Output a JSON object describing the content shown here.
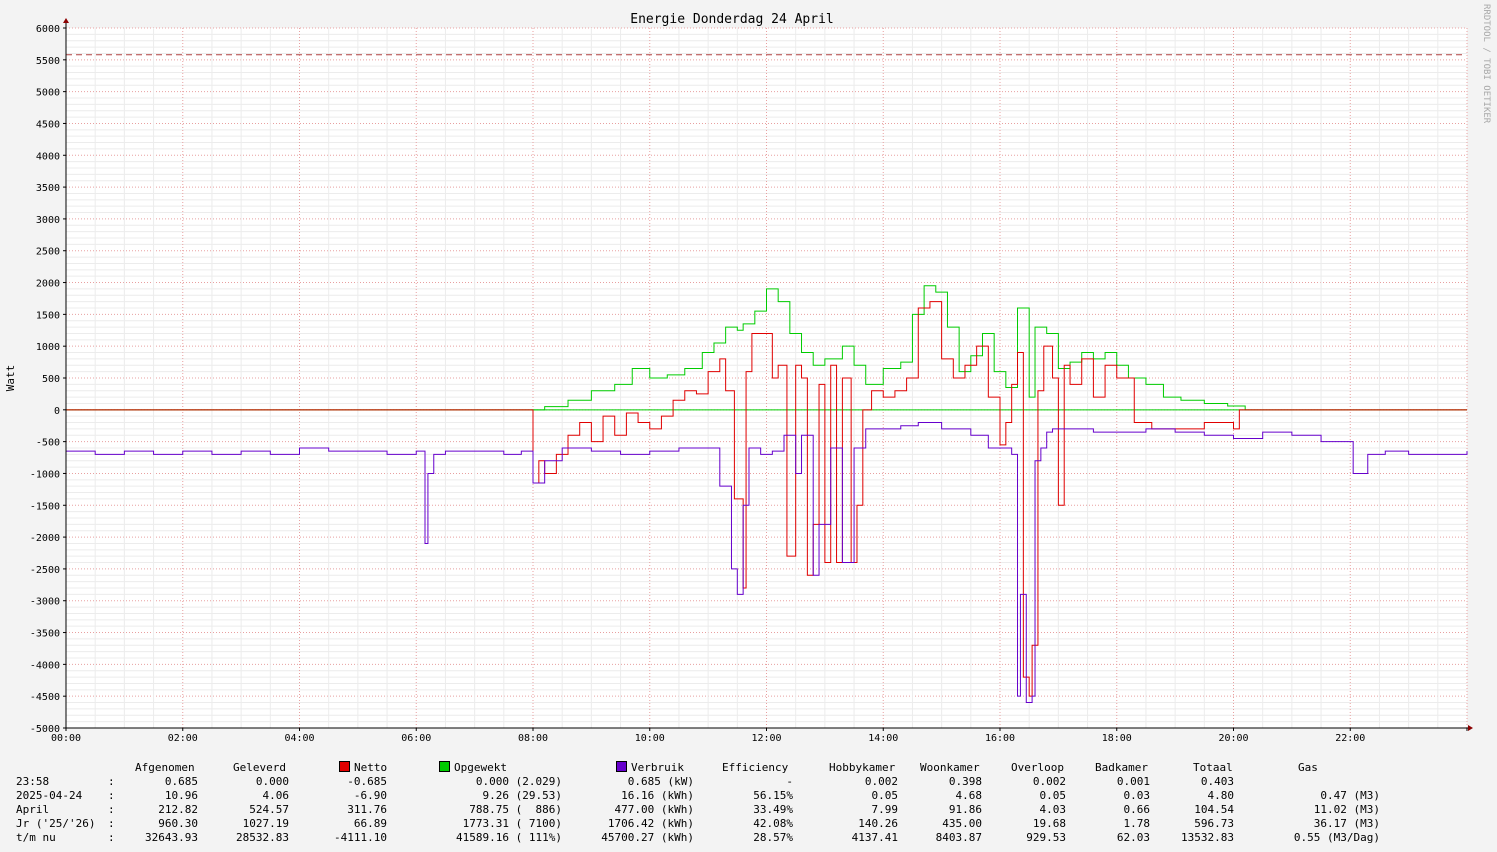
{
  "watermark": "RRDTOOL / TOBI OETIKER",
  "chart_data": {
    "type": "line",
    "title": "Energie Donderdag 24 April",
    "ylabel": "Watt",
    "xlabel": "",
    "ylim": [
      -5000,
      6000
    ],
    "xlim": [
      0,
      24
    ],
    "y_ticks": [
      6000,
      5500,
      5000,
      4500,
      4000,
      3500,
      3000,
      2500,
      2000,
      1500,
      1000,
      500,
      0,
      -500,
      -1000,
      -1500,
      -2000,
      -2500,
      -3000,
      -3500,
      -4000,
      -4500,
      -5000
    ],
    "x_ticks": [
      "00:00",
      "02:00",
      "04:00",
      "06:00",
      "08:00",
      "10:00",
      "12:00",
      "14:00",
      "16:00",
      "18:00",
      "20:00",
      "22:00"
    ],
    "grid": true,
    "reference_line": 5580,
    "series": [
      {
        "name": "Opgewekt",
        "color": "#00cc00",
        "x": [
          0,
          7.7,
          8.2,
          8.6,
          9.0,
          9.4,
          9.7,
          10.0,
          10.3,
          10.6,
          10.9,
          11.1,
          11.3,
          11.5,
          11.6,
          11.8,
          12.0,
          12.2,
          12.4,
          12.6,
          12.8,
          13.0,
          13.3,
          13.5,
          13.7,
          14.0,
          14.3,
          14.5,
          14.7,
          14.9,
          15.1,
          15.3,
          15.5,
          15.7,
          15.9,
          16.1,
          16.3,
          16.5,
          16.6,
          16.8,
          17.0,
          17.2,
          17.4,
          17.6,
          17.8,
          18.0,
          18.2,
          18.5,
          18.8,
          19.1,
          19.5,
          19.9,
          20.2,
          24
        ],
        "y": [
          0,
          0,
          50,
          150,
          300,
          400,
          650,
          500,
          550,
          650,
          900,
          1050,
          1300,
          1250,
          1350,
          1550,
          1900,
          1700,
          1200,
          900,
          700,
          800,
          1000,
          700,
          400,
          650,
          750,
          1500,
          1950,
          1850,
          1300,
          600,
          850,
          1200,
          600,
          350,
          1600,
          200,
          1300,
          1200,
          650,
          750,
          900,
          800,
          900,
          700,
          500,
          400,
          200,
          150,
          100,
          60,
          0,
          0
        ]
      },
      {
        "name": "Netto",
        "color": "#e00000",
        "x": [
          0,
          7.8,
          8.0,
          8.1,
          8.2,
          8.4,
          8.6,
          8.8,
          9.0,
          9.2,
          9.4,
          9.6,
          9.8,
          10.0,
          10.2,
          10.4,
          10.6,
          10.8,
          11.0,
          11.2,
          11.3,
          11.45,
          11.6,
          11.65,
          11.75,
          11.85,
          12.0,
          12.1,
          12.2,
          12.35,
          12.5,
          12.6,
          12.7,
          12.8,
          12.9,
          13.0,
          13.1,
          13.2,
          13.3,
          13.45,
          13.55,
          13.65,
          13.8,
          14.0,
          14.2,
          14.4,
          14.6,
          14.8,
          15.0,
          15.2,
          15.4,
          15.6,
          15.8,
          16.0,
          16.1,
          16.2,
          16.3,
          16.4,
          16.5,
          16.55,
          16.65,
          16.75,
          16.9,
          17.0,
          17.1,
          17.2,
          17.4,
          17.6,
          17.8,
          18.0,
          18.3,
          18.6,
          19.0,
          19.5,
          20.0,
          20.1,
          24
        ],
        "y": [
          0,
          0,
          -1150,
          -800,
          -1000,
          -700,
          -400,
          -200,
          -500,
          -100,
          -400,
          -50,
          -200,
          -300,
          -100,
          150,
          300,
          250,
          600,
          800,
          300,
          -1400,
          -2800,
          600,
          1200,
          1200,
          1200,
          500,
          700,
          -2300,
          700,
          500,
          -2600,
          -1800,
          400,
          -2400,
          700,
          -2400,
          500,
          -2400,
          -1500,
          0,
          300,
          200,
          300,
          500,
          1600,
          1700,
          800,
          500,
          700,
          1000,
          200,
          -550,
          -200,
          400,
          900,
          -4200,
          -4500,
          -3700,
          300,
          1000,
          500,
          -1500,
          700,
          400,
          800,
          200,
          700,
          500,
          -200,
          -300,
          -300,
          -200,
          -300,
          0,
          0
        ]
      },
      {
        "name": "Verbruik",
        "color": "#6600cc",
        "x": [
          0,
          0.5,
          1,
          1.5,
          2,
          2.5,
          3,
          3.5,
          4,
          4.5,
          5,
          5.5,
          6,
          6.15,
          6.2,
          6.3,
          6.5,
          7,
          7.5,
          7.8,
          8.0,
          8.2,
          8.5,
          9,
          9.5,
          10,
          10.5,
          11,
          11.2,
          11.4,
          11.5,
          11.6,
          11.7,
          11.9,
          12.1,
          12.3,
          12.5,
          12.6,
          12.8,
          12.9,
          13.1,
          13.3,
          13.5,
          13.7,
          14.0,
          14.3,
          14.6,
          15.0,
          15.5,
          15.8,
          16.2,
          16.3,
          16.35,
          16.45,
          16.55,
          16.6,
          16.7,
          16.8,
          16.9,
          17.0,
          17.3,
          17.6,
          18.0,
          18.5,
          19.0,
          19.5,
          20.0,
          20.5,
          21.0,
          21.5,
          22.0,
          22.05,
          22.3,
          22.6,
          23.0,
          23.5,
          24
        ],
        "y": [
          -650,
          -700,
          -650,
          -700,
          -650,
          -700,
          -650,
          -700,
          -600,
          -650,
          -650,
          -700,
          -650,
          -2100,
          -1000,
          -700,
          -650,
          -650,
          -700,
          -650,
          -1150,
          -800,
          -600,
          -650,
          -700,
          -650,
          -600,
          -600,
          -1200,
          -2500,
          -2900,
          -1500,
          -600,
          -700,
          -650,
          -400,
          -1000,
          -400,
          -2600,
          -1800,
          -600,
          -2400,
          -600,
          -300,
          -300,
          -250,
          -200,
          -300,
          -400,
          -600,
          -700,
          -4500,
          -2900,
          -4600,
          -4500,
          -800,
          -600,
          -350,
          -300,
          -300,
          -300,
          -350,
          -350,
          -300,
          -350,
          -400,
          -450,
          -350,
          -400,
          -500,
          -500,
          -1000,
          -700,
          -650,
          -700,
          -700,
          -650
        ]
      }
    ]
  },
  "legend": {
    "headers": {
      "afgenomen": "Afgenomen",
      "geleverd": "Geleverd",
      "netto": "Netto",
      "opgewekt": "Opgewekt",
      "verbruik": "Verbruik",
      "efficiency": "Efficiency",
      "hobbykamer": "Hobbykamer",
      "woonkamer": "Woonkamer",
      "overloop": "Overloop",
      "badkamer": "Badkamer",
      "totaal": "Totaal",
      "gas": "Gas"
    },
    "colors": {
      "netto": "#e00000",
      "opgewekt": "#00cc00",
      "verbruik": "#6600cc"
    },
    "rows": [
      {
        "label": "23:58",
        "sep": ":",
        "afgenomen": "0.685",
        "geleverd": "0.000",
        "netto": "-0.685",
        "opgewekt": "0.000 (2.029)",
        "verbruik": "0.685 (kW)",
        "efficiency": "-",
        "hobbykamer": "0.002",
        "woonkamer": "0.398",
        "overloop": "0.002",
        "badkamer": "0.001",
        "totaal": "0.403",
        "gas": ""
      },
      {
        "label": "2025-04-24",
        "sep": ":",
        "afgenomen": "10.96",
        "geleverd": "4.06",
        "netto": "-6.90",
        "opgewekt": "9.26 (29.53)",
        "verbruik": "16.16 (kWh)",
        "efficiency": "56.15%",
        "hobbykamer": "0.05",
        "woonkamer": "4.68",
        "overloop": "0.05",
        "badkamer": "0.03",
        "totaal": "4.80",
        "gas": "0.47 (M3)"
      },
      {
        "label": "April",
        "sep": ":",
        "afgenomen": "212.82",
        "geleverd": "524.57",
        "netto": "311.76",
        "opgewekt": "788.75 (  886)",
        "verbruik": "477.00 (kWh)",
        "efficiency": "33.49%",
        "hobbykamer": "7.99",
        "woonkamer": "91.86",
        "overloop": "4.03",
        "badkamer": "0.66",
        "totaal": "104.54",
        "gas": "11.02 (M3)"
      },
      {
        "label": "Jr ('25/'26)",
        "sep": ":",
        "afgenomen": "960.30",
        "geleverd": "1027.19",
        "netto": "66.89",
        "opgewekt": "1773.31 ( 7100)",
        "verbruik": "1706.42 (kWh)",
        "efficiency": "42.08%",
        "hobbykamer": "140.26",
        "woonkamer": "435.00",
        "overloop": "19.68",
        "badkamer": "1.78",
        "totaal": "596.73",
        "gas": "36.17 (M3)"
      },
      {
        "label": "t/m nu",
        "sep": ":",
        "afgenomen": "32643.93",
        "geleverd": "28532.83",
        "netto": "-4111.10",
        "opgewekt": "41589.16 ( 111%)",
        "verbruik": "45700.27 (kWh)",
        "efficiency": "28.57%",
        "hobbykamer": "4137.41",
        "woonkamer": "8403.87",
        "overloop": "929.53",
        "badkamer": "62.03",
        "totaal": "13532.83",
        "gas": "0.55 (M3/Dag)"
      }
    ]
  }
}
